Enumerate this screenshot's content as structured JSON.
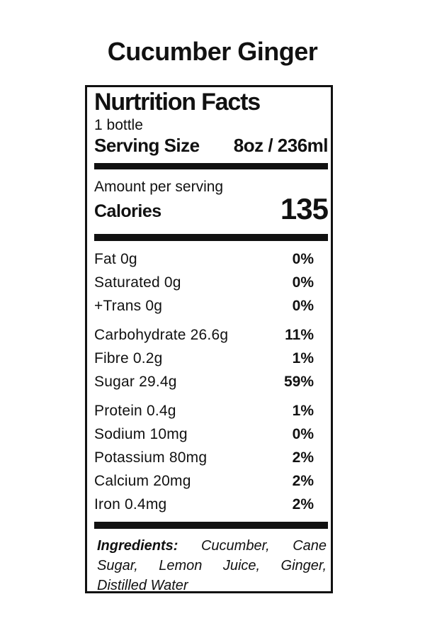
{
  "page": {
    "title": "Cucumber Ginger"
  },
  "label": {
    "heading": "Nurtrition Facts",
    "serving_count": "1 bottle",
    "serving_size_label": "Serving Size",
    "serving_size_value": "8oz / 236ml",
    "amount_per_serving": "Amount per serving",
    "calories_label": "Calories",
    "calories_value": "135",
    "nutrient_groups": [
      [
        {
          "name": "Fat 0g",
          "dv": "0%"
        },
        {
          "name": "Saturated 0g",
          "dv": "0%"
        },
        {
          "name": "+Trans 0g",
          "dv": "0%"
        }
      ],
      [
        {
          "name": "Carbohydrate 26.6g",
          "dv": "11%"
        },
        {
          "name": "Fibre 0.2g",
          "dv": "1%"
        },
        {
          "name": "Sugar 29.4g",
          "dv": "59%"
        }
      ],
      [
        {
          "name": "Protein 0.4g",
          "dv": "1%"
        },
        {
          "name": "Sodium 10mg",
          "dv": "0%"
        },
        {
          "name": "Potassium 80mg",
          "dv": "2%"
        },
        {
          "name": "Calcium 20mg",
          "dv": "2%"
        },
        {
          "name": "Iron 0.4mg",
          "dv": "2%"
        }
      ]
    ],
    "ingredients_label": "Ingredients:",
    "ingredients_text": "Cucumber, Cane Sugar, Lemon Juice, Ginger, Distilled Water"
  },
  "colors": {
    "text": "#111111",
    "background": "#ffffff"
  }
}
